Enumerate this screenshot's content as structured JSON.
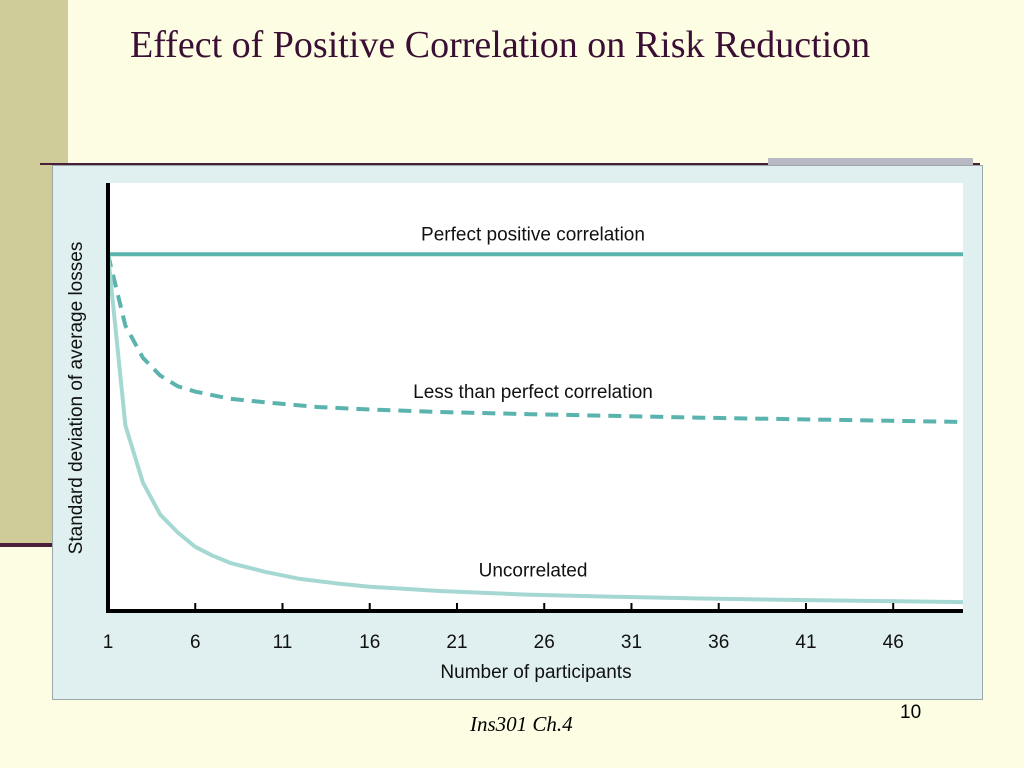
{
  "slide": {
    "title": "Effect of Positive Correlation on Risk Reduction",
    "footer": "Ins301 Ch.4",
    "page_number": "10"
  },
  "colors": {
    "background": "#fdfde3",
    "accent_band": "#cfcc9a",
    "title_text": "#3a0f33",
    "rule": "#4a1f3a",
    "chart_background": "#e0f0f0",
    "plot_background": "#ffffff",
    "line_dark": "#5bb3ae",
    "line_light": "#a6d8d3"
  },
  "chart_data": {
    "type": "line",
    "title": "",
    "xlabel": "Number of participants",
    "ylabel": "Standard deviation of average losses",
    "x_ticks": [
      1,
      6,
      11,
      16,
      21,
      26,
      31,
      36,
      41,
      46
    ],
    "xlim": [
      1,
      50
    ],
    "ylim": [
      0,
      1.2
    ],
    "grid": false,
    "y_tick_labels": false,
    "series": [
      {
        "name": "Perfect positive correlation",
        "style": "solid",
        "color": "#5bb3ae",
        "x": [
          1,
          10,
          20,
          30,
          40,
          50
        ],
        "y": [
          1.0,
          1.0,
          1.0,
          1.0,
          1.0,
          1.0
        ]
      },
      {
        "name": "Less than perfect correlation",
        "style": "dashed",
        "color": "#5bb3ae",
        "x": [
          1,
          2,
          3,
          4,
          5,
          6,
          8,
          10,
          13,
          16,
          20,
          25,
          30,
          35,
          40,
          45,
          50
        ],
        "y": [
          1.0,
          0.8,
          0.71,
          0.66,
          0.63,
          0.615,
          0.595,
          0.585,
          0.572,
          0.565,
          0.558,
          0.552,
          0.547,
          0.542,
          0.538,
          0.534,
          0.53
        ]
      },
      {
        "name": "Uncorrelated",
        "style": "solid",
        "color": "#a6d8d3",
        "x": [
          1,
          2,
          3,
          4,
          5,
          6,
          7,
          8,
          10,
          12,
          14,
          16,
          20,
          25,
          30,
          35,
          40,
          45,
          50
        ],
        "y": [
          1.0,
          0.52,
          0.36,
          0.27,
          0.22,
          0.18,
          0.155,
          0.135,
          0.11,
          0.09,
          0.078,
          0.068,
          0.056,
          0.046,
          0.04,
          0.035,
          0.031,
          0.028,
          0.025
        ]
      }
    ]
  }
}
